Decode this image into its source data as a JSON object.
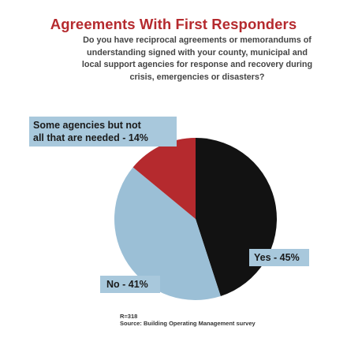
{
  "chart_data": {
    "type": "pie",
    "title": "Agreements With First Responders",
    "subtitle_lines": [
      "Do you have reciprocal agreements or memorandums of",
      "understanding signed with your county, municipal and",
      "local support agencies for response and recovery during",
      "crisis, emergencies or disasters?"
    ],
    "slices": [
      {
        "label": "Yes - 45%",
        "value": 45,
        "color": "#121212"
      },
      {
        "label": "No - 41%",
        "value": 41,
        "color": "#9bbfd6"
      },
      {
        "label_lines": [
          "Some agencies but not",
          "all that are needed - 14%"
        ],
        "value": 14,
        "color": "#b52a2e"
      }
    ],
    "sample_size": "R=318",
    "source": "Source: Building Operating Management survey",
    "colors": {
      "title": "#b52a2e",
      "label_box": "#a8c8dc"
    }
  }
}
